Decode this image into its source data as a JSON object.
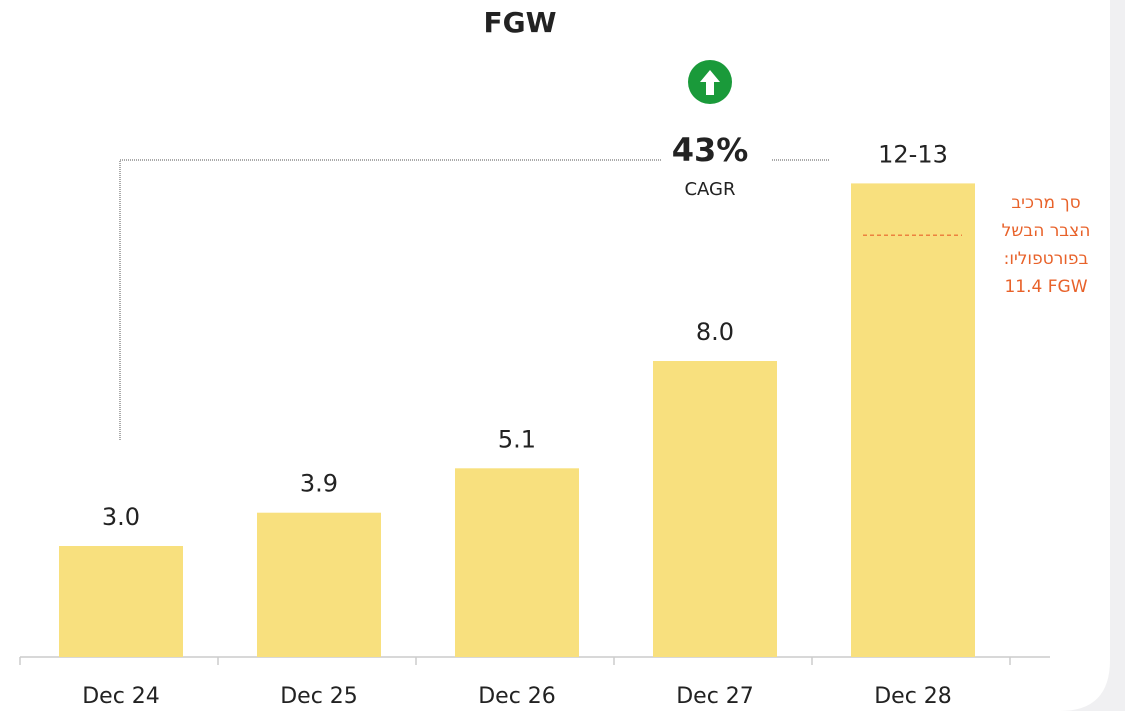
{
  "chart_data": {
    "type": "bar",
    "title": "FGW",
    "categories": [
      "Dec 24",
      "Dec 25",
      "Dec 26",
      "Dec 27",
      "Dec 28"
    ],
    "values": [
      3.0,
      3.9,
      5.1,
      8.0,
      12.8
    ],
    "value_labels": [
      "3.0",
      "3.9",
      "5.1",
      "8.0",
      "12-13"
    ],
    "color": "#f8e07e",
    "ylim": [
      0,
      13
    ],
    "cagr": {
      "value": "43%",
      "label": "CAGR"
    },
    "portfolio_marker": {
      "value": 11.4,
      "color": "#e8622a",
      "label_lines": [
        "סך מרכיב",
        "הצבר הבשל",
        "בפורטפוליו:",
        "11.4 FGW"
      ]
    }
  }
}
